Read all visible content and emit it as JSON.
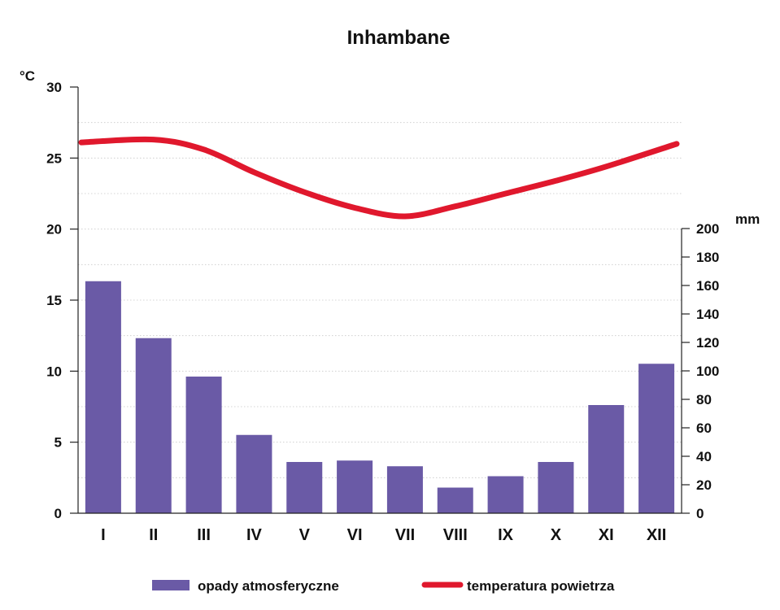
{
  "chart_data": {
    "type": "bar",
    "title": "Inhambane",
    "categories": [
      "I",
      "II",
      "III",
      "IV",
      "V",
      "VI",
      "VII",
      "VIII",
      "IX",
      "X",
      "XI",
      "XII"
    ],
    "series": [
      {
        "name": "opady atmosferyczne",
        "type": "bar",
        "axis": "right",
        "values": [
          163,
          123,
          96,
          55,
          36,
          37,
          33,
          18,
          26,
          36,
          76,
          105
        ]
      },
      {
        "name": "temperatura powietrza",
        "type": "line",
        "axis": "left",
        "values": [
          26.1,
          26.3,
          25.6,
          24.0,
          22.6,
          21.5,
          20.9,
          21.6,
          22.5,
          23.4,
          24.4,
          26.0
        ]
      }
    ],
    "left_axis": {
      "unit": "°C",
      "ylim": [
        0,
        30
      ],
      "ticks": [
        "0",
        "5",
        "10",
        "15",
        "20",
        "25",
        "30"
      ]
    },
    "right_axis": {
      "unit": "mm",
      "ylim": [
        0,
        200
      ],
      "ticks": [
        "0",
        "20",
        "40",
        "60",
        "80",
        "100",
        "120",
        "140",
        "160",
        "180",
        "200"
      ]
    },
    "grid": true,
    "legend_position": "bottom",
    "colors": {
      "bars": "#6a5aa6",
      "line": "#e0182d"
    }
  }
}
